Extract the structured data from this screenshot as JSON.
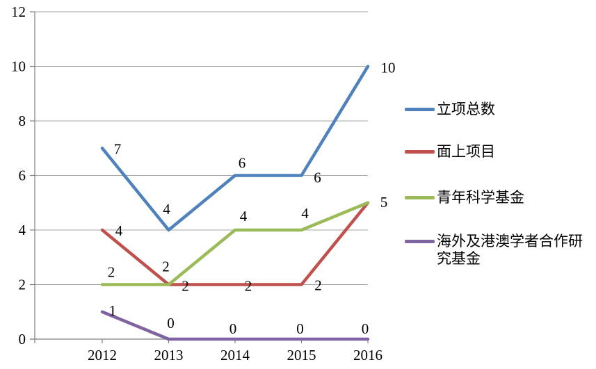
{
  "chart_data": {
    "type": "line",
    "title": "",
    "xlabel": "",
    "ylabel": "",
    "categories": [
      "2012",
      "2013",
      "2014",
      "2015",
      "2016"
    ],
    "series": [
      {
        "name": "立项总数",
        "color": "#4F81BD",
        "values": [
          7,
          4,
          6,
          6,
          10
        ]
      },
      {
        "name": "面上项目",
        "color": "#C0504D",
        "values": [
          4,
          2,
          2,
          2,
          5
        ]
      },
      {
        "name": "青年科学基金",
        "color": "#9BBB59",
        "values": [
          2,
          2,
          4,
          4,
          5
        ]
      },
      {
        "name": "海外及港澳学者合作研究基金",
        "color": "#8064A2",
        "values": [
          1,
          0,
          0,
          0,
          0
        ]
      }
    ],
    "ylim": [
      0,
      12
    ],
    "y_ticks": [
      0,
      2,
      4,
      6,
      8,
      10,
      12
    ],
    "y_tick_labels": [
      "0",
      "2",
      "4",
      "6",
      "8",
      "10",
      "12"
    ],
    "grid": true,
    "data_labels": true,
    "legend_position": "right",
    "grid_color": "#A6A6A6",
    "axis_color": "#808080",
    "text_color": "#000000",
    "label_offsets": [
      [
        [
          22,
          1
        ],
        [
          -3,
          -30
        ],
        [
          10,
          -18
        ],
        [
          23,
          3
        ],
        [
          29,
          2
        ]
      ],
      [
        [
          24,
          1
        ],
        [
          24,
          2
        ],
        [
          19,
          2
        ],
        [
          24,
          1
        ],
        [
          23,
          -1
        ]
      ],
      [
        [
          13,
          -18
        ],
        [
          -4,
          -26
        ],
        [
          12,
          -20
        ],
        [
          5,
          -24
        ],
        null
      ],
      [
        [
          15,
          -2
        ],
        [
          3,
          -23
        ],
        [
          -3,
          -15
        ],
        [
          -2,
          -15
        ],
        [
          -4,
          -15
        ]
      ]
    ]
  }
}
